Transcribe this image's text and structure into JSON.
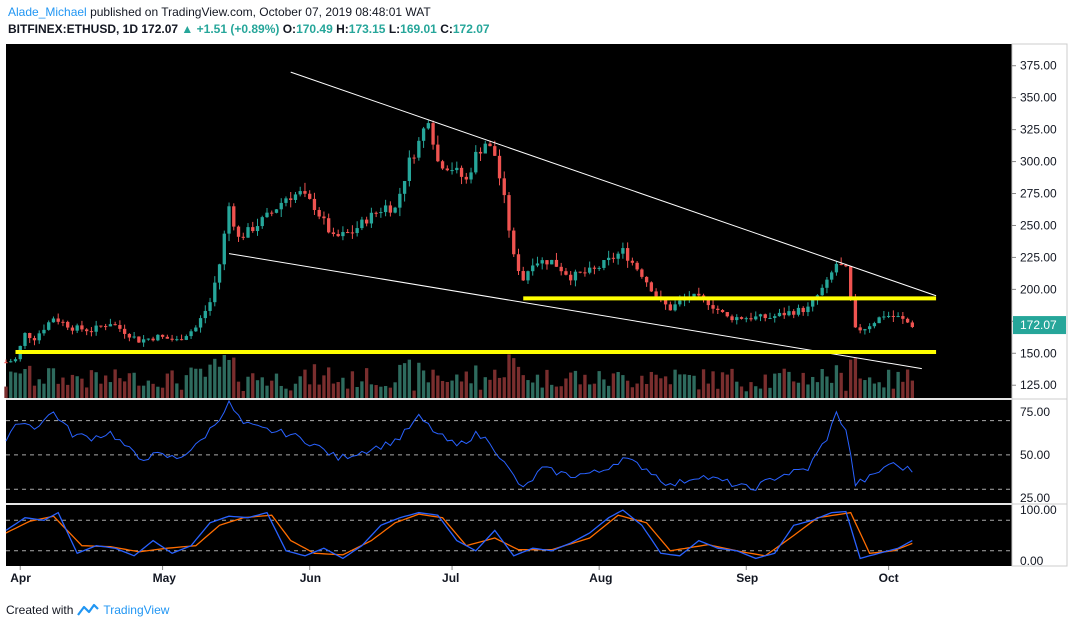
{
  "header": {
    "author": "Alade_Michael",
    "published": "published on TradingView.com, October 07, 2019 08:48:01 WAT"
  },
  "symbol_line": {
    "symbol": "BITFINEX:ETHUSD, 1D",
    "last": "172.07",
    "change_arrow": "▲",
    "change": "+1.51 (+0.89%)",
    "o_label": "O:",
    "o_value": "170.49",
    "h_label": "H:",
    "h_value": "173.15",
    "l_label": "L:",
    "l_value": "169.01",
    "c_label": "C:",
    "c_value": "172.07"
  },
  "footer": {
    "created_with": "Created with",
    "brand": "TradingView"
  },
  "colors": {
    "up": "#26a69a",
    "down": "#ef5350",
    "vol_up": "#2e6b5e",
    "vol_down": "#7a2e2e",
    "yellow_line": "#ffff00",
    "trend_line": "#ffffff",
    "rsi": "#2962ff",
    "stoch_k": "#2962ff",
    "stoch_d": "#ff6d00",
    "price_badge": "#26a69a"
  },
  "chart_data": {
    "type": "candlestick",
    "price_axis": {
      "ticks": [
        "375.00",
        "350.00",
        "325.00",
        "300.00",
        "275.00",
        "250.00",
        "225.00",
        "200.00",
        "175.00",
        "150.00",
        "125.00"
      ],
      "range": [
        115,
        392
      ],
      "current_price_label": "172.07"
    },
    "x_axis": {
      "ticks": [
        "Apr",
        "May",
        "Jun",
        "Jul",
        "Aug",
        "Sep",
        "Oct"
      ],
      "tick_dates": [
        "2019-04-01",
        "2019-05-01",
        "2019-06-01",
        "2019-07-01",
        "2019-08-01",
        "2019-09-01",
        "2019-10-01"
      ],
      "range_dates": [
        "2019-03-29",
        "2019-10-27"
      ]
    },
    "price_anchors": [
      [
        "2019-03-29",
        143
      ],
      [
        "2019-03-31",
        145
      ],
      [
        "2019-04-02",
        165
      ],
      [
        "2019-04-04",
        162
      ],
      [
        "2019-04-08",
        178
      ],
      [
        "2019-04-12",
        170
      ],
      [
        "2019-04-16",
        168
      ],
      [
        "2019-04-20",
        174
      ],
      [
        "2019-04-26",
        160
      ],
      [
        "2019-04-30",
        163
      ],
      [
        "2019-05-04",
        160
      ],
      [
        "2019-05-08",
        170
      ],
      [
        "2019-05-11",
        190
      ],
      [
        "2019-05-13",
        220
      ],
      [
        "2019-05-15",
        265
      ],
      [
        "2019-05-17",
        240
      ],
      [
        "2019-05-20",
        248
      ],
      [
        "2019-05-24",
        260
      ],
      [
        "2019-05-27",
        272
      ],
      [
        "2019-05-30",
        275
      ],
      [
        "2019-06-02",
        265
      ],
      [
        "2019-06-06",
        240
      ],
      [
        "2019-06-10",
        245
      ],
      [
        "2019-06-13",
        255
      ],
      [
        "2019-06-17",
        265
      ],
      [
        "2019-06-19",
        263
      ],
      [
        "2019-06-22",
        300
      ],
      [
        "2019-06-24",
        315
      ],
      [
        "2019-06-26",
        335
      ],
      [
        "2019-06-28",
        300
      ],
      [
        "2019-07-01",
        295
      ],
      [
        "2019-07-04",
        285
      ],
      [
        "2019-07-06",
        305
      ],
      [
        "2019-07-08",
        315
      ],
      [
        "2019-07-10",
        305
      ],
      [
        "2019-07-12",
        270
      ],
      [
        "2019-07-14",
        225
      ],
      [
        "2019-07-16",
        208
      ],
      [
        "2019-07-18",
        222
      ],
      [
        "2019-07-22",
        222
      ],
      [
        "2019-07-26",
        210
      ],
      [
        "2019-07-31",
        215
      ],
      [
        "2019-08-04",
        225
      ],
      [
        "2019-08-06",
        230
      ],
      [
        "2019-08-10",
        212
      ],
      [
        "2019-08-14",
        190
      ],
      [
        "2019-08-16",
        185
      ],
      [
        "2019-08-20",
        195
      ],
      [
        "2019-08-24",
        190
      ],
      [
        "2019-08-28",
        178
      ],
      [
        "2019-09-02",
        178
      ],
      [
        "2019-09-06",
        178
      ],
      [
        "2019-09-10",
        182
      ],
      [
        "2019-09-14",
        185
      ],
      [
        "2019-09-18",
        205
      ],
      [
        "2019-09-20",
        220
      ],
      [
        "2019-09-22",
        215
      ],
      [
        "2019-09-24",
        168
      ],
      [
        "2019-09-26",
        170
      ],
      [
        "2019-09-30",
        180
      ],
      [
        "2019-10-03",
        178
      ],
      [
        "2019-10-06",
        172
      ]
    ],
    "levels": [
      {
        "name": "resistance",
        "price": 193,
        "from": "2019-07-16",
        "to": "2019-10-11",
        "color": "#ffff00"
      },
      {
        "name": "support",
        "price": 151,
        "from": "2019-03-31",
        "to": "2019-10-11",
        "color": "#ffff00"
      }
    ],
    "trendlines": [
      {
        "name": "upper",
        "p1": [
          "2019-05-28",
          370
        ],
        "p2": [
          "2019-10-11",
          195
        ],
        "color": "#ffffff"
      },
      {
        "name": "lower",
        "p1": [
          "2019-05-15",
          228
        ],
        "p2": [
          "2019-10-08",
          138
        ],
        "color": "#ffffff"
      }
    ],
    "rsi": {
      "ticks": [
        "75.00",
        "50.00",
        "25.00"
      ],
      "range": [
        22,
        82
      ],
      "levels": [
        70,
        50,
        30
      ],
      "anchors": [
        [
          "2019-03-29",
          58
        ],
        [
          "2019-04-01",
          70
        ],
        [
          "2019-04-04",
          66
        ],
        [
          "2019-04-08",
          75
        ],
        [
          "2019-04-12",
          62
        ],
        [
          "2019-04-16",
          60
        ],
        [
          "2019-04-20",
          63
        ],
        [
          "2019-04-26",
          48
        ],
        [
          "2019-04-30",
          50
        ],
        [
          "2019-05-04",
          48
        ],
        [
          "2019-05-08",
          55
        ],
        [
          "2019-05-12",
          68
        ],
        [
          "2019-05-15",
          80
        ],
        [
          "2019-05-18",
          68
        ],
        [
          "2019-05-22",
          65
        ],
        [
          "2019-05-28",
          62
        ],
        [
          "2019-06-02",
          56
        ],
        [
          "2019-06-07",
          48
        ],
        [
          "2019-06-12",
          52
        ],
        [
          "2019-06-17",
          56
        ],
        [
          "2019-06-20",
          60
        ],
        [
          "2019-06-24",
          72
        ],
        [
          "2019-06-28",
          62
        ],
        [
          "2019-07-02",
          55
        ],
        [
          "2019-07-06",
          62
        ],
        [
          "2019-07-09",
          58
        ],
        [
          "2019-07-12",
          45
        ],
        [
          "2019-07-16",
          30
        ],
        [
          "2019-07-20",
          42
        ],
        [
          "2019-07-26",
          38
        ],
        [
          "2019-08-01",
          40
        ],
        [
          "2019-08-06",
          48
        ],
        [
          "2019-08-11",
          42
        ],
        [
          "2019-08-16",
          32
        ],
        [
          "2019-08-22",
          38
        ],
        [
          "2019-08-28",
          34
        ],
        [
          "2019-09-02",
          30
        ],
        [
          "2019-09-08",
          38
        ],
        [
          "2019-09-14",
          42
        ],
        [
          "2019-09-18",
          60
        ],
        [
          "2019-09-20",
          74
        ],
        [
          "2019-09-22",
          65
        ],
        [
          "2019-09-24",
          33
        ],
        [
          "2019-09-28",
          38
        ],
        [
          "2019-10-01",
          45
        ],
        [
          "2019-10-06",
          41
        ]
      ]
    },
    "stochastic": {
      "ticks": [
        "100.00",
        "0.00"
      ],
      "range": [
        -10,
        110
      ],
      "levels": [
        80,
        20
      ],
      "k_anchors": [
        [
          "2019-03-29",
          60
        ],
        [
          "2019-04-02",
          85
        ],
        [
          "2019-04-06",
          80
        ],
        [
          "2019-04-09",
          95
        ],
        [
          "2019-04-13",
          15
        ],
        [
          "2019-04-17",
          30
        ],
        [
          "2019-04-21",
          25
        ],
        [
          "2019-04-25",
          10
        ],
        [
          "2019-04-29",
          40
        ],
        [
          "2019-05-03",
          15
        ],
        [
          "2019-05-07",
          30
        ],
        [
          "2019-05-11",
          75
        ],
        [
          "2019-05-15",
          88
        ],
        [
          "2019-05-19",
          85
        ],
        [
          "2019-05-23",
          95
        ],
        [
          "2019-05-27",
          20
        ],
        [
          "2019-05-31",
          10
        ],
        [
          "2019-06-04",
          25
        ],
        [
          "2019-06-08",
          5
        ],
        [
          "2019-06-12",
          30
        ],
        [
          "2019-06-16",
          70
        ],
        [
          "2019-06-20",
          85
        ],
        [
          "2019-06-24",
          95
        ],
        [
          "2019-06-28",
          90
        ],
        [
          "2019-07-02",
          40
        ],
        [
          "2019-07-06",
          20
        ],
        [
          "2019-07-10",
          60
        ],
        [
          "2019-07-14",
          10
        ],
        [
          "2019-07-18",
          25
        ],
        [
          "2019-07-22",
          20
        ],
        [
          "2019-07-26",
          35
        ],
        [
          "2019-07-30",
          55
        ],
        [
          "2019-08-03",
          85
        ],
        [
          "2019-08-06",
          100
        ],
        [
          "2019-08-10",
          70
        ],
        [
          "2019-08-14",
          15
        ],
        [
          "2019-08-18",
          10
        ],
        [
          "2019-08-22",
          40
        ],
        [
          "2019-08-26",
          25
        ],
        [
          "2019-08-30",
          20
        ],
        [
          "2019-09-03",
          5
        ],
        [
          "2019-09-07",
          15
        ],
        [
          "2019-09-11",
          70
        ],
        [
          "2019-09-15",
          80
        ],
        [
          "2019-09-19",
          95
        ],
        [
          "2019-09-22",
          97
        ],
        [
          "2019-09-25",
          5
        ],
        [
          "2019-09-29",
          15
        ],
        [
          "2019-10-03",
          25
        ],
        [
          "2019-10-07",
          45
        ]
      ],
      "d_anchors": [
        [
          "2019-03-29",
          55
        ],
        [
          "2019-04-03",
          78
        ],
        [
          "2019-04-08",
          88
        ],
        [
          "2019-04-14",
          30
        ],
        [
          "2019-04-20",
          28
        ],
        [
          "2019-04-26",
          18
        ],
        [
          "2019-05-02",
          25
        ],
        [
          "2019-05-08",
          30
        ],
        [
          "2019-05-13",
          70
        ],
        [
          "2019-05-18",
          85
        ],
        [
          "2019-05-24",
          90
        ],
        [
          "2019-05-28",
          40
        ],
        [
          "2019-06-02",
          15
        ],
        [
          "2019-06-08",
          12
        ],
        [
          "2019-06-14",
          40
        ],
        [
          "2019-06-19",
          75
        ],
        [
          "2019-06-24",
          92
        ],
        [
          "2019-06-29",
          85
        ],
        [
          "2019-07-04",
          30
        ],
        [
          "2019-07-10",
          45
        ],
        [
          "2019-07-15",
          22
        ],
        [
          "2019-07-22",
          22
        ],
        [
          "2019-07-30",
          45
        ],
        [
          "2019-08-05",
          90
        ],
        [
          "2019-08-11",
          75
        ],
        [
          "2019-08-16",
          20
        ],
        [
          "2019-08-24",
          32
        ],
        [
          "2019-08-31",
          18
        ],
        [
          "2019-09-05",
          10
        ],
        [
          "2019-09-11",
          50
        ],
        [
          "2019-09-16",
          85
        ],
        [
          "2019-09-23",
          95
        ],
        [
          "2019-09-27",
          15
        ],
        [
          "2019-10-02",
          20
        ],
        [
          "2019-10-07",
          38
        ]
      ]
    }
  }
}
